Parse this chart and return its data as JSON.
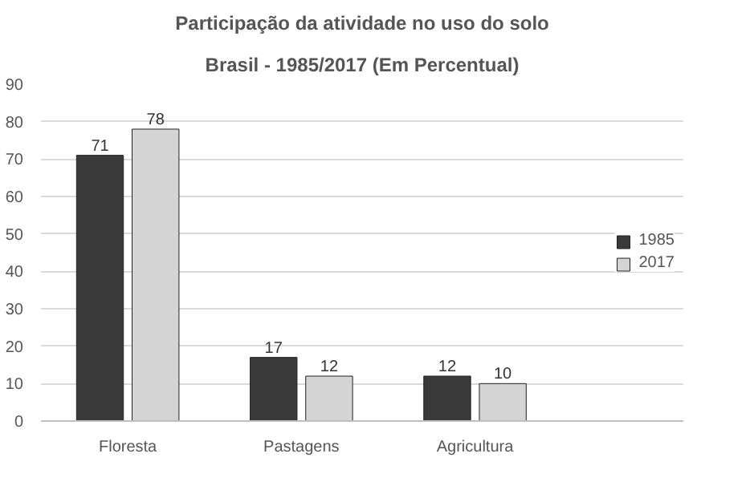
{
  "chart_data": {
    "type": "bar",
    "title": "Participação da atividade no uso do solo",
    "subtitle": "Brasil - 1985/2017 (Em Percentual)",
    "categories": [
      "Floresta",
      "Pastagens",
      "Agricultura"
    ],
    "series": [
      {
        "name": "1985",
        "color": "#3a3a3a",
        "values": [
          71,
          17,
          12
        ]
      },
      {
        "name": "2017",
        "color": "#d4d4d4",
        "values": [
          78,
          12,
          10
        ]
      }
    ],
    "ylim": [
      0,
      90
    ],
    "yticks": [
      0,
      10,
      20,
      30,
      40,
      50,
      60,
      70,
      80,
      90
    ],
    "grid": "y",
    "legend": "right",
    "data_labels": true
  }
}
